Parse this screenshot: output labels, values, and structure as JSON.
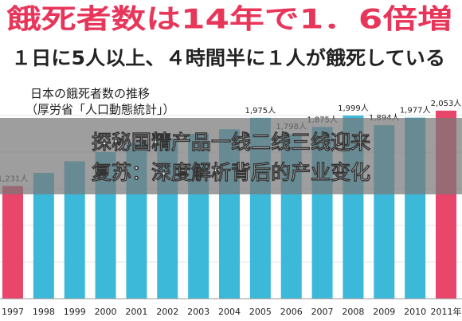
{
  "chart_data": {
    "type": "bar",
    "title": "餓死者数は14年で1．6倍増",
    "subtitle": "１日に5人以上、４時間半に１人が餓死している",
    "chart_label": "日本の餓死者数の推移",
    "source": "（厚労省「人口動態統計」）",
    "annotations": [
      "探秘国精产品一线二线三线迎来",
      "复苏：深度解析背后的产业变化"
    ],
    "categories": [
      "1997",
      "1998",
      "1999",
      "2000",
      "2001",
      "2002",
      "2003",
      "2004",
      "2005",
      "2006",
      "2007",
      "2008",
      "2009",
      "2010",
      "2011年"
    ],
    "values": [
      1231,
      1374,
      1500,
      1600,
      1700,
      1750,
      1800,
      1850,
      1975,
      1798,
      1875,
      1999,
      1894,
      1977,
      2053
    ],
    "value_labels": [
      "1,231人",
      null,
      null,
      null,
      null,
      null,
      null,
      null,
      "1,975人",
      "1,798人",
      "1,875人",
      "1,999人",
      "1,894人",
      "1,977人",
      "2,053人"
    ],
    "colors": [
      "#e8466a",
      "#3cb8d8",
      "#3cb8d8",
      "#3cb8d8",
      "#3cb8d8",
      "#3cb8d8",
      "#3cb8d8",
      "#3cb8d8",
      "#3cb8d8",
      "#3cb8d8",
      "#3cb8d8",
      "#3cb8d8",
      "#3cb8d8",
      "#3cb8d8",
      "#e8466a"
    ]
  }
}
